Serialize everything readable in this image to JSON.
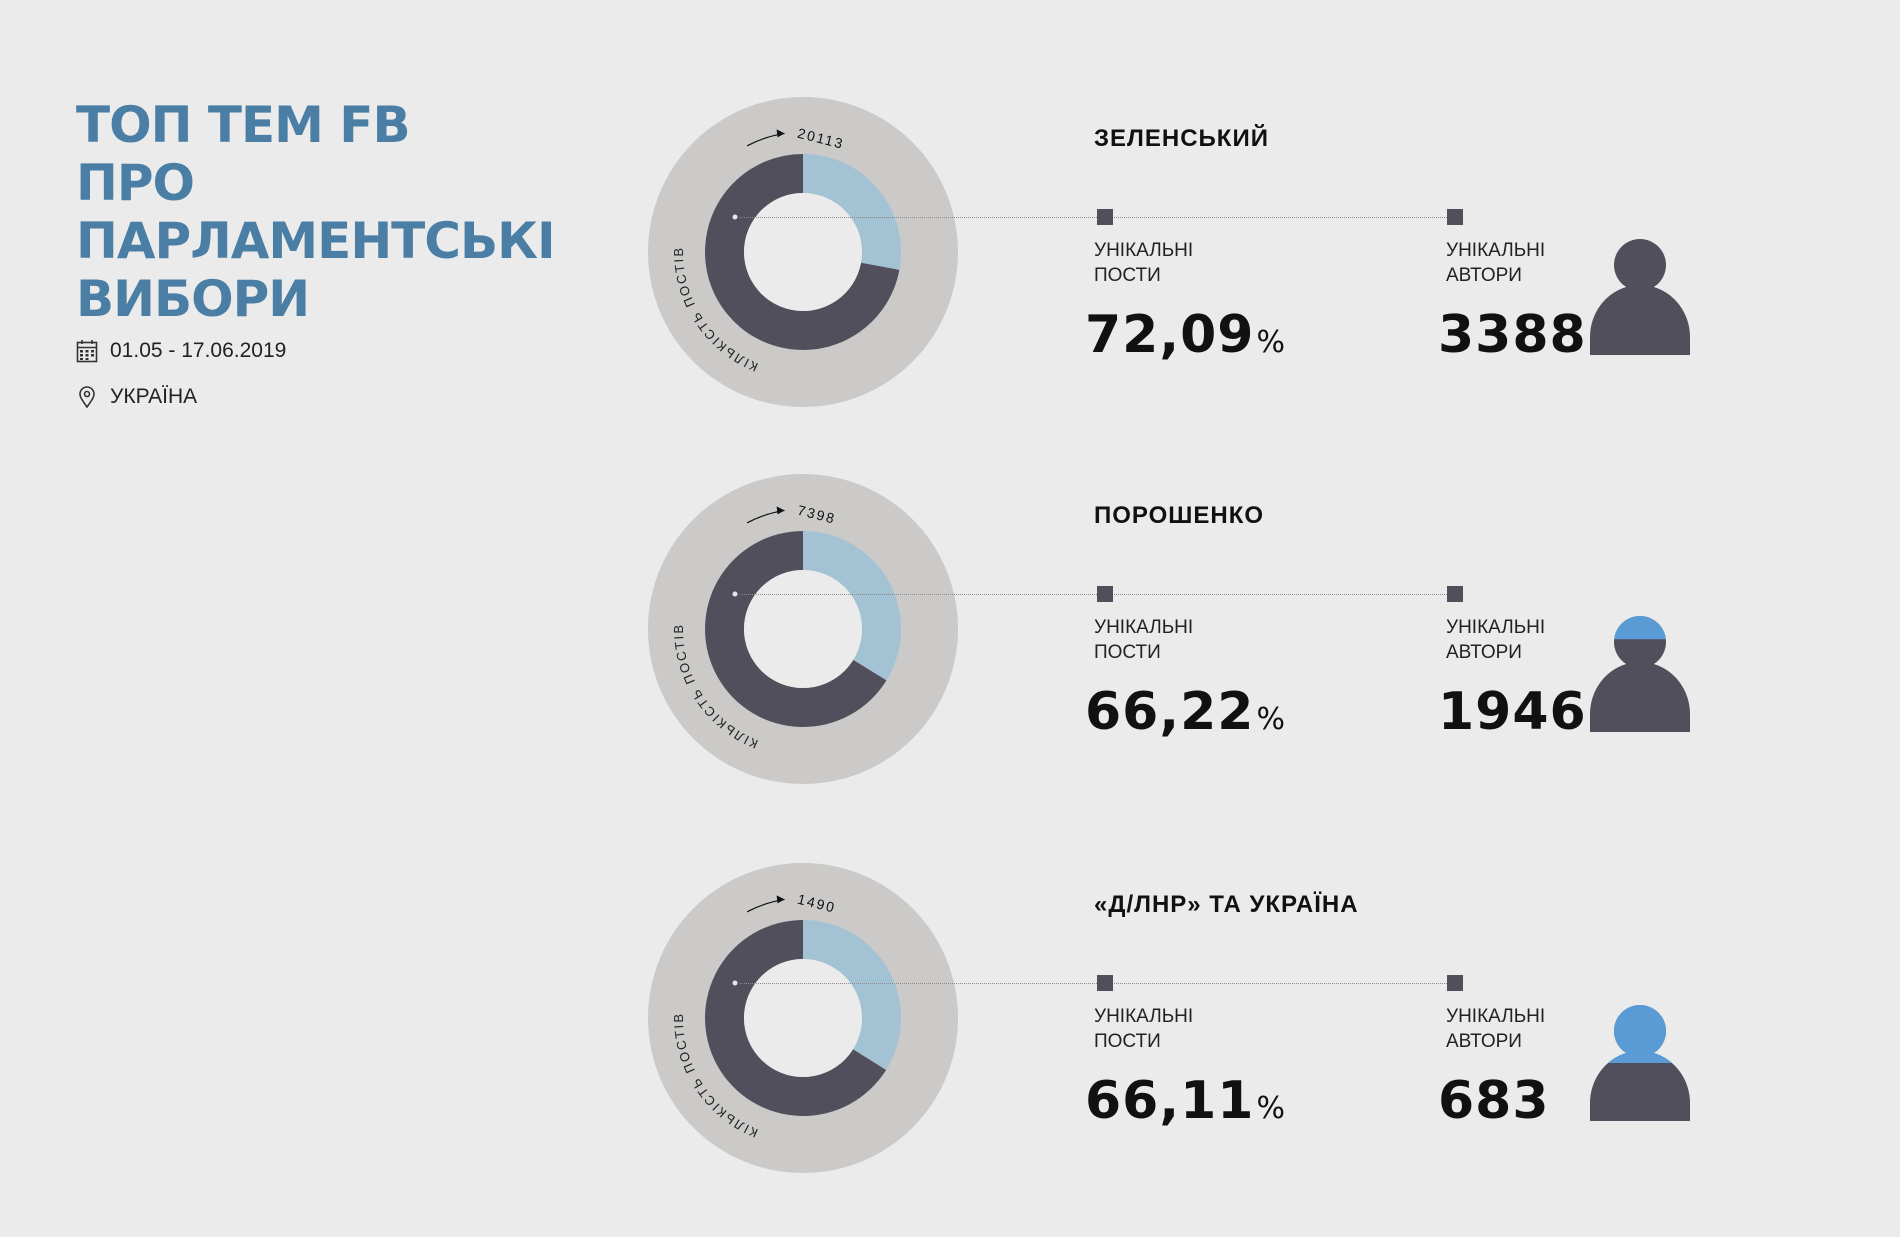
{
  "header": {
    "title": "ТОП ТЕМ FB ПРО ПАРЛАМЕНТСЬКІ ВИБОРИ",
    "date_range": "01.05 - 17.06.2019",
    "location": "УКРАЇНА",
    "date_icon": "calendar-icon",
    "location_icon": "location-pin-icon"
  },
  "labels": {
    "axis_label": "КІЛЬКІСТЬ ПОСТІВ",
    "unique_posts": "УНІКАЛЬНІ\nПОСТИ",
    "unique_authors": "УНІКАЛЬНІ\nАВТОРИ",
    "percent_sign": "%"
  },
  "colors": {
    "title": "#4a7ea5",
    "unique_share": "#a3c2d3",
    "remaining_share": "#524f5d",
    "outer_ring": "#cbcac8",
    "author_highlight": "#5b9bd5"
  },
  "chart_data": [
    {
      "type": "donut",
      "topic": "ЗЕЛЕНСЬКИЙ",
      "total_posts": 20113,
      "total_posts_label": "20113",
      "unique_posts_pct": 72.09,
      "unique_posts_pct_label": "72,09",
      "slices": [
        {
          "name": "unique",
          "value": 27.91
        },
        {
          "name": "other",
          "value": 72.09
        }
      ],
      "unique_authors": 3388,
      "unique_authors_label": "3388",
      "author_icon_fill": 0
    },
    {
      "type": "donut",
      "topic": "ПОРОШЕНКО",
      "total_posts": 7398,
      "total_posts_label": "7398",
      "unique_posts_pct": 66.22,
      "unique_posts_pct_label": "66,22",
      "slices": [
        {
          "name": "unique",
          "value": 33.78
        },
        {
          "name": "other",
          "value": 66.22
        }
      ],
      "unique_authors": 1946,
      "unique_authors_label": "1946",
      "author_icon_fill": 0.2
    },
    {
      "type": "donut",
      "topic": "«Д/ЛНР» ТА УКРАЇНА",
      "total_posts": 1490,
      "total_posts_label": "1490",
      "unique_posts_pct": 66.11,
      "unique_posts_pct_label": "66,11",
      "slices": [
        {
          "name": "unique",
          "value": 33.89
        },
        {
          "name": "other",
          "value": 66.11
        }
      ],
      "unique_authors": 683,
      "unique_authors_label": "683",
      "author_icon_fill": 0.5
    }
  ]
}
